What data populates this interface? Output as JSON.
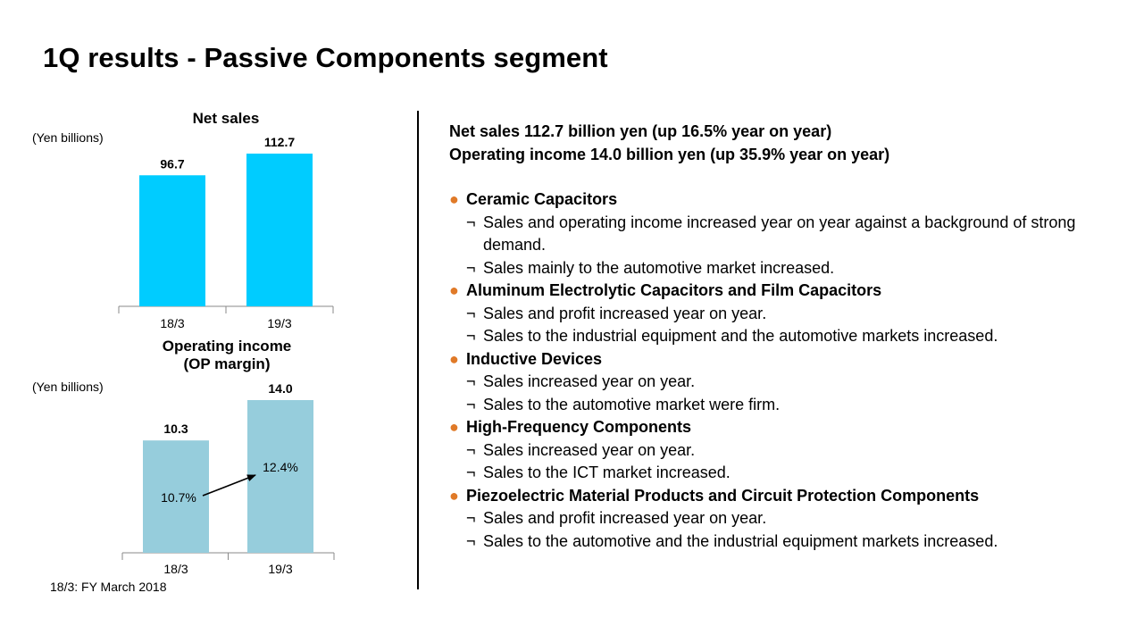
{
  "title": "1Q results - Passive Components segment",
  "footnote": "18/3: FY March 2018",
  "charts": {
    "net_sales": {
      "title": "Net sales",
      "unit": "(Yen billions)"
    },
    "op_income": {
      "title_line1": "Operating income",
      "title_line2": "(OP margin)",
      "unit": "(Yen billions)"
    }
  },
  "colors": {
    "net_sales_bar": "#00ccff",
    "op_income_bar": "#96cddc",
    "bullet": "#e07a28"
  },
  "chart_data": [
    {
      "type": "bar",
      "title": "Net sales",
      "ylabel": "(Yen billions)",
      "categories": [
        "18/3",
        "19/3"
      ],
      "values": [
        96.7,
        112.7
      ],
      "value_labels": [
        "96.7",
        "112.7"
      ],
      "ylim": [
        0,
        112.7
      ],
      "grid": false
    },
    {
      "type": "bar",
      "title": "Operating income (OP margin)",
      "ylabel": "(Yen billions)",
      "categories": [
        "18/3",
        "19/3"
      ],
      "values": [
        10.3,
        14.0
      ],
      "value_labels": [
        "10.3",
        "14.0"
      ],
      "margins": [
        "10.7%",
        "12.4%"
      ],
      "ylim": [
        0,
        14.0
      ],
      "grid": false
    }
  ],
  "summary": {
    "line1": "Net sales  112.7 billion yen (up 16.5% year on year)",
    "line2": "Operating income 14.0 billion yen (up 35.9% year on year)"
  },
  "bullet_symbol": "●",
  "sub_marker": "¬",
  "sections": [
    {
      "heading": "Ceramic Capacitors",
      "items": [
        "Sales and operating income increased year on year against a background of strong demand.",
        "Sales mainly to the automotive market increased."
      ]
    },
    {
      "heading": "Aluminum Electrolytic Capacitors and Film Capacitors",
      "items": [
        "Sales and profit increased year on year.",
        "Sales to the industrial equipment and the automotive markets increased."
      ]
    },
    {
      "heading": "Inductive Devices",
      "items": [
        "Sales increased year on year.",
        "Sales to the automotive market were firm."
      ]
    },
    {
      "heading": "High-Frequency Components",
      "items": [
        "Sales increased year on year.",
        "Sales to the ICT market increased."
      ]
    },
    {
      "heading": "Piezoelectric Material Products and Circuit Protection Components",
      "items": [
        "Sales and profit increased year on year.",
        "Sales to the automotive and the industrial equipment markets increased."
      ]
    }
  ]
}
